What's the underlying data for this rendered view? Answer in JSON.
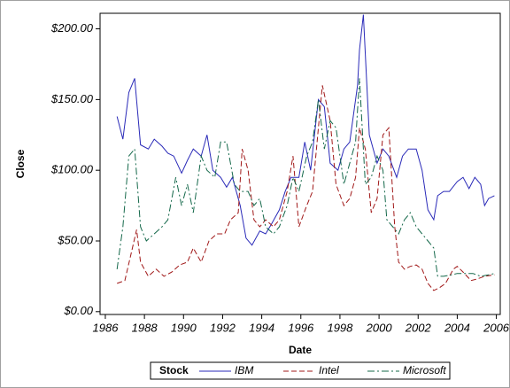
{
  "chart_data": {
    "type": "line",
    "x_label": "Date",
    "y_label": "Close",
    "xlim": [
      1985.73,
      2006.2
    ],
    "xticks": [
      1986,
      1988,
      1990,
      1992,
      1994,
      1996,
      1998,
      2000,
      2002,
      2004,
      2006
    ],
    "ylim": [
      -2,
      211
    ],
    "yticks": [
      {
        "value": 0,
        "label": "$0.00"
      },
      {
        "value": 50,
        "label": "$50.00"
      },
      {
        "value": 100,
        "label": "$100.00"
      },
      {
        "value": 150,
        "label": "$150.00"
      },
      {
        "value": 200,
        "label": "$200.00"
      }
    ],
    "legend_title": "Stock",
    "legend_position": "bottom",
    "series": [
      {
        "name": "IBM",
        "color": "#2a2ab8",
        "line_style": "solid",
        "x": [
          1986.6,
          1986.9,
          1987.2,
          1987.5,
          1987.8,
          1988.2,
          1988.5,
          1988.9,
          1989.2,
          1989.5,
          1989.9,
          1990.2,
          1990.5,
          1990.9,
          1991.2,
          1991.5,
          1991.9,
          1992.2,
          1992.5,
          1992.9,
          1993.2,
          1993.5,
          1993.9,
          1994.2,
          1994.5,
          1994.9,
          1995.2,
          1995.5,
          1995.9,
          1996.2,
          1996.5,
          1996.9,
          1997.2,
          1997.5,
          1997.9,
          1998.2,
          1998.5,
          1998.9,
          1999.0,
          1999.2,
          1999.5,
          1999.9,
          2000.2,
          2000.5,
          2000.9,
          2001.2,
          2001.5,
          2001.9,
          2002.2,
          2002.5,
          2002.8,
          2003.0,
          2003.3,
          2003.6,
          2004.0,
          2004.3,
          2004.6,
          2004.9,
          2005.2,
          2005.4,
          2005.6,
          2005.9
        ],
        "values": [
          138,
          122,
          155,
          165,
          118,
          115,
          122,
          117,
          112,
          110,
          98,
          107,
          115,
          110,
          125,
          100,
          95,
          88,
          95,
          75,
          52,
          47,
          57,
          55,
          62,
          72,
          85,
          95,
          95,
          120,
          100,
          150,
          145,
          105,
          100,
          115,
          120,
          160,
          185,
          210,
          125,
          105,
          115,
          110,
          95,
          110,
          115,
          115,
          100,
          72,
          65,
          82,
          85,
          85,
          92,
          95,
          87,
          95,
          90,
          75,
          80,
          82
        ]
      },
      {
        "name": "Intel",
        "color": "#a01818",
        "line_style": "dashed",
        "x": [
          1986.6,
          1987.0,
          1987.3,
          1987.6,
          1987.8,
          1988.2,
          1988.6,
          1989.0,
          1989.4,
          1989.8,
          1990.2,
          1990.5,
          1990.9,
          1991.3,
          1991.7,
          1992.1,
          1992.4,
          1992.8,
          1993.0,
          1993.3,
          1993.6,
          1993.9,
          1994.2,
          1994.6,
          1994.9,
          1995.3,
          1995.6,
          1995.9,
          1996.3,
          1996.6,
          1996.9,
          1997.1,
          1997.5,
          1997.8,
          1998.2,
          1998.5,
          1998.8,
          1999.0,
          1999.3,
          1999.6,
          1999.9,
          2000.2,
          2000.5,
          2000.8,
          2001.0,
          2001.3,
          2001.6,
          2001.9,
          2002.2,
          2002.5,
          2002.8,
          2003.1,
          2003.4,
          2003.8,
          2004.0,
          2004.3,
          2004.7,
          2005.0,
          2005.4,
          2005.9
        ],
        "values": [
          20,
          22,
          40,
          58,
          35,
          25,
          30,
          25,
          28,
          33,
          35,
          45,
          35,
          50,
          55,
          55,
          65,
          70,
          115,
          100,
          65,
          60,
          65,
          60,
          65,
          85,
          110,
          60,
          75,
          85,
          130,
          160,
          135,
          90,
          75,
          80,
          95,
          130,
          115,
          70,
          80,
          125,
          130,
          60,
          35,
          30,
          32,
          33,
          30,
          20,
          15,
          17,
          20,
          30,
          32,
          28,
          22,
          23,
          25,
          26
        ]
      },
      {
        "name": "Microsoft",
        "color": "#14684a",
        "line_style": "dash-dot",
        "x": [
          1986.6,
          1986.9,
          1987.2,
          1987.5,
          1987.8,
          1988.1,
          1988.5,
          1988.9,
          1989.2,
          1989.6,
          1989.9,
          1990.2,
          1990.5,
          1990.9,
          1991.2,
          1991.6,
          1991.9,
          1992.2,
          1992.6,
          1992.9,
          1993.3,
          1993.6,
          1993.9,
          1994.2,
          1994.6,
          1994.9,
          1995.3,
          1995.6,
          1995.9,
          1996.3,
          1996.6,
          1996.9,
          1997.2,
          1997.5,
          1997.8,
          1998.2,
          1998.5,
          1998.8,
          1999.0,
          1999.3,
          1999.6,
          1999.9,
          2000.2,
          2000.4,
          2000.7,
          2001.0,
          2001.3,
          2001.6,
          2001.9,
          2002.2,
          2002.5,
          2002.8,
          2003.0,
          2003.3,
          2003.7,
          2004.0,
          2004.4,
          2004.8,
          2005.2,
          2005.6,
          2005.9
        ],
        "values": [
          30,
          60,
          110,
          115,
          60,
          50,
          55,
          60,
          65,
          95,
          75,
          90,
          70,
          110,
          100,
          95,
          120,
          120,
          90,
          85,
          85,
          75,
          80,
          60,
          55,
          60,
          75,
          95,
          85,
          110,
          120,
          150,
          115,
          135,
          130,
          90,
          105,
          120,
          165,
          90,
          95,
          110,
          100,
          65,
          60,
          55,
          65,
          70,
          60,
          55,
          50,
          45,
          25,
          25,
          26,
          27,
          27,
          27,
          25,
          26,
          27
        ]
      }
    ]
  }
}
